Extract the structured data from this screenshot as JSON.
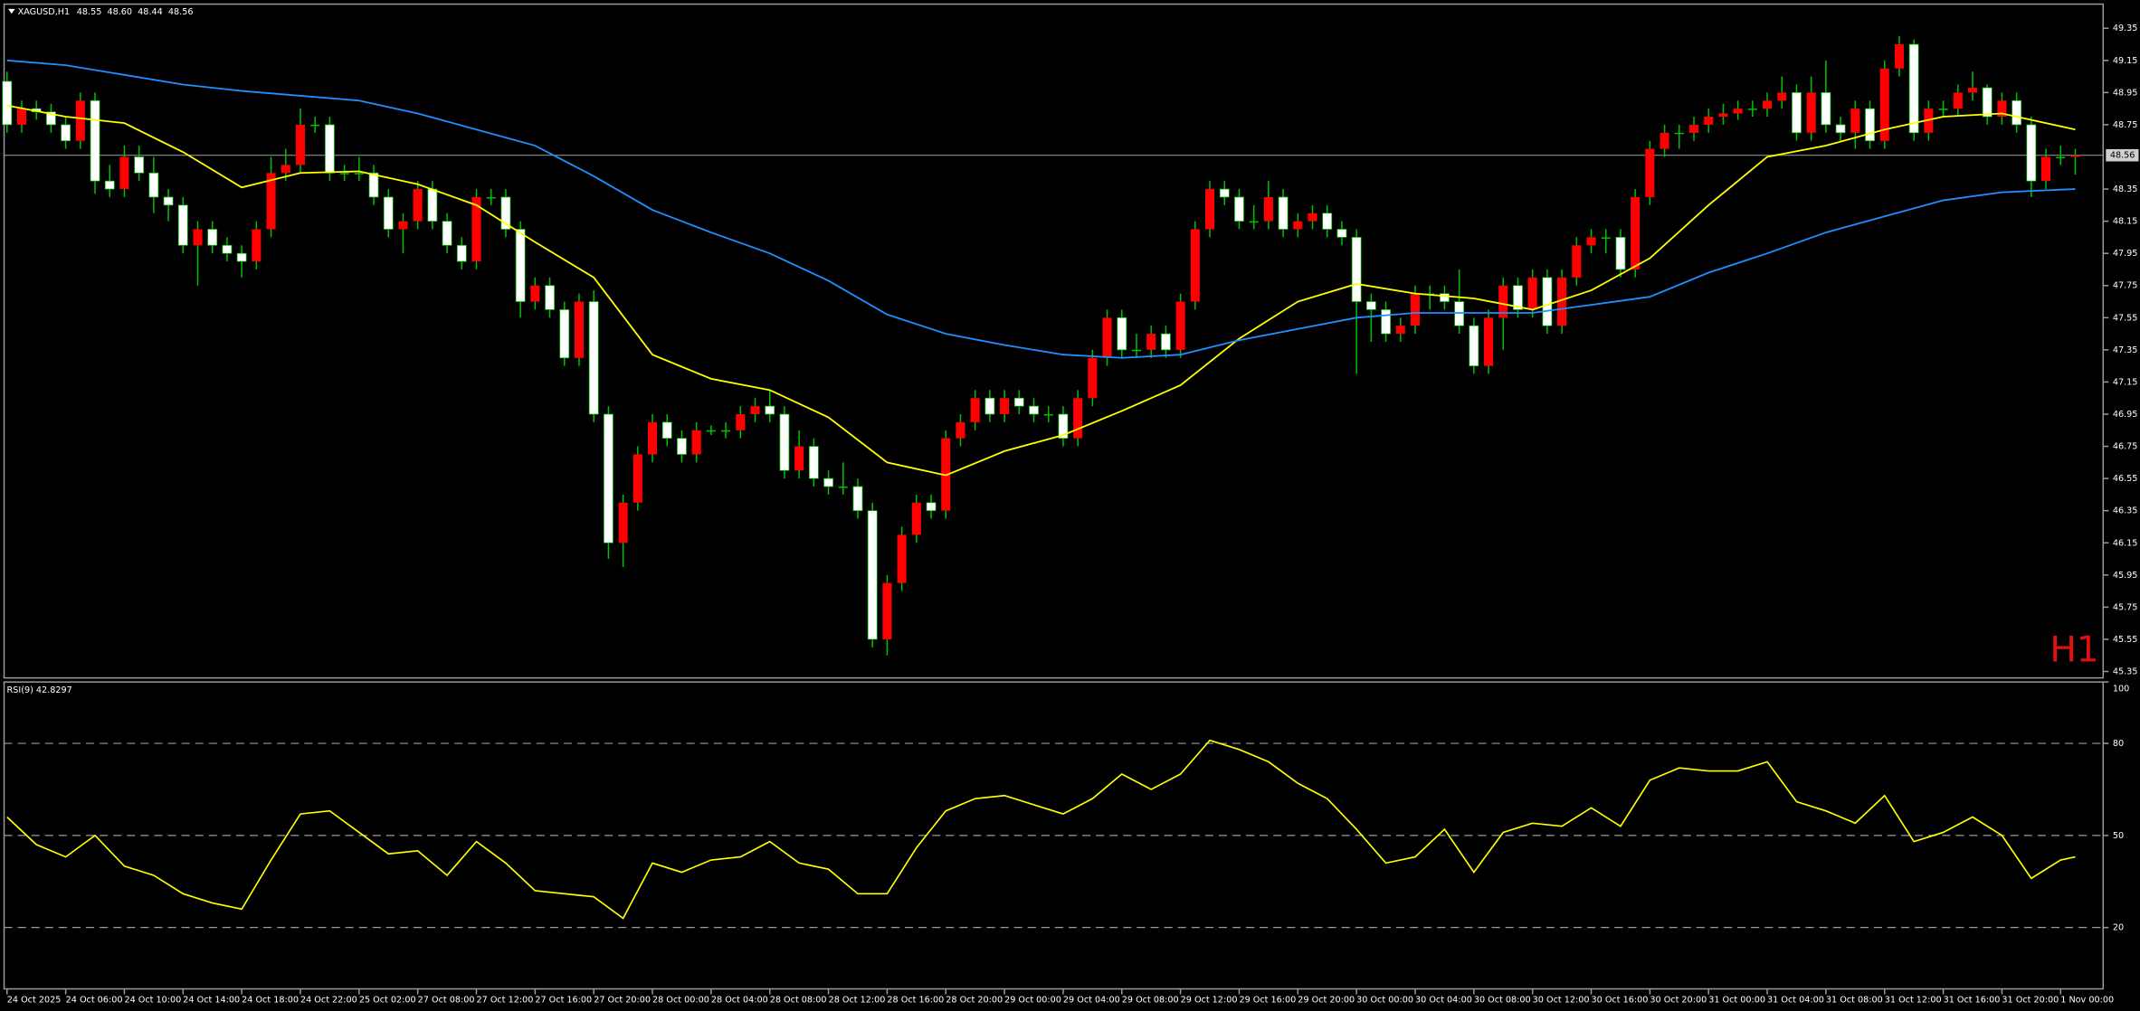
{
  "chart_data": {
    "type": "candlestick",
    "title": "XAGUSD,H1",
    "quote": [
      "48.55",
      "48.60",
      "48.44",
      "48.56"
    ],
    "timeframe_label": "H1",
    "up_color": "#ff0000",
    "down_color": "#ffffff",
    "wick_color": "#00c000",
    "ohlc": [
      [
        49.02,
        49.08,
        48.7,
        48.75
      ],
      [
        48.75,
        48.9,
        48.7,
        48.85
      ],
      [
        48.85,
        48.9,
        48.78,
        48.83
      ],
      [
        48.83,
        48.88,
        48.7,
        48.75
      ],
      [
        48.75,
        48.8,
        48.6,
        48.65
      ],
      [
        48.65,
        48.95,
        48.6,
        48.9
      ],
      [
        48.9,
        48.95,
        48.32,
        48.4
      ],
      [
        48.4,
        48.5,
        48.3,
        48.35
      ],
      [
        48.35,
        48.62,
        48.3,
        48.55
      ],
      [
        48.55,
        48.62,
        48.4,
        48.45
      ],
      [
        48.45,
        48.55,
        48.2,
        48.3
      ],
      [
        48.3,
        48.35,
        48.15,
        48.25
      ],
      [
        48.25,
        48.3,
        47.95,
        48.0
      ],
      [
        48.0,
        48.15,
        47.75,
        48.1
      ],
      [
        48.1,
        48.15,
        47.95,
        48.0
      ],
      [
        48.0,
        48.05,
        47.9,
        47.95
      ],
      [
        47.95,
        48.0,
        47.8,
        47.9
      ],
      [
        47.9,
        48.15,
        47.85,
        48.1
      ],
      [
        48.1,
        48.55,
        48.05,
        48.45
      ],
      [
        48.45,
        48.6,
        48.4,
        48.5
      ],
      [
        48.5,
        48.85,
        48.45,
        48.75
      ],
      [
        48.75,
        48.8,
        48.7,
        48.75
      ],
      [
        48.75,
        48.8,
        48.4,
        48.45
      ],
      [
        48.45,
        48.5,
        48.4,
        48.45
      ],
      [
        48.45,
        48.55,
        48.4,
        48.45
      ],
      [
        48.45,
        48.5,
        48.25,
        48.3
      ],
      [
        48.3,
        48.35,
        48.05,
        48.1
      ],
      [
        48.1,
        48.2,
        47.95,
        48.15
      ],
      [
        48.15,
        48.4,
        48.1,
        48.35
      ],
      [
        48.35,
        48.4,
        48.1,
        48.15
      ],
      [
        48.15,
        48.2,
        47.95,
        48.0
      ],
      [
        48.0,
        48.05,
        47.85,
        47.9
      ],
      [
        47.9,
        48.35,
        47.85,
        48.3
      ],
      [
        48.3,
        48.35,
        48.25,
        48.3
      ],
      [
        48.3,
        48.35,
        48.05,
        48.1
      ],
      [
        48.1,
        48.15,
        47.55,
        47.65
      ],
      [
        47.65,
        47.8,
        47.6,
        47.75
      ],
      [
        47.75,
        47.8,
        47.55,
        47.6
      ],
      [
        47.6,
        47.65,
        47.25,
        47.3
      ],
      [
        47.3,
        47.7,
        47.25,
        47.65
      ],
      [
        47.65,
        47.72,
        46.9,
        46.95
      ],
      [
        46.95,
        47.0,
        46.05,
        46.15
      ],
      [
        46.15,
        46.45,
        46.0,
        46.4
      ],
      [
        46.4,
        46.75,
        46.35,
        46.7
      ],
      [
        46.7,
        46.95,
        46.65,
        46.9
      ],
      [
        46.9,
        46.95,
        46.75,
        46.8
      ],
      [
        46.8,
        46.85,
        46.65,
        46.7
      ],
      [
        46.7,
        46.9,
        46.65,
        46.85
      ],
      [
        46.85,
        46.88,
        46.82,
        46.85
      ],
      [
        46.85,
        46.9,
        46.8,
        46.85
      ],
      [
        46.85,
        47.0,
        46.8,
        46.95
      ],
      [
        46.95,
        47.05,
        46.9,
        47.0
      ],
      [
        47.0,
        47.1,
        46.9,
        46.95
      ],
      [
        46.95,
        47.0,
        46.55,
        46.6
      ],
      [
        46.6,
        46.85,
        46.55,
        46.75
      ],
      [
        46.75,
        46.8,
        46.5,
        46.55
      ],
      [
        46.55,
        46.6,
        46.45,
        46.5
      ],
      [
        46.5,
        46.65,
        46.45,
        46.5
      ],
      [
        46.5,
        46.55,
        46.3,
        46.35
      ],
      [
        46.35,
        46.4,
        45.5,
        45.55
      ],
      [
        45.55,
        45.95,
        45.45,
        45.9
      ],
      [
        45.9,
        46.25,
        45.85,
        46.2
      ],
      [
        46.2,
        46.45,
        46.15,
        46.4
      ],
      [
        46.4,
        46.45,
        46.3,
        46.35
      ],
      [
        46.35,
        46.85,
        46.3,
        46.8
      ],
      [
        46.8,
        46.95,
        46.75,
        46.9
      ],
      [
        46.9,
        47.1,
        46.85,
        47.05
      ],
      [
        47.05,
        47.1,
        46.9,
        46.95
      ],
      [
        46.95,
        47.1,
        46.9,
        47.05
      ],
      [
        47.05,
        47.1,
        46.95,
        47.0
      ],
      [
        47.0,
        47.05,
        46.9,
        46.95
      ],
      [
        46.95,
        47.0,
        46.9,
        46.95
      ],
      [
        46.95,
        47.0,
        46.75,
        46.8
      ],
      [
        46.8,
        47.1,
        46.75,
        47.05
      ],
      [
        47.05,
        47.35,
        47.0,
        47.3
      ],
      [
        47.3,
        47.6,
        47.25,
        47.55
      ],
      [
        47.55,
        47.6,
        47.3,
        47.35
      ],
      [
        47.35,
        47.45,
        47.3,
        47.35
      ],
      [
        47.35,
        47.5,
        47.3,
        47.45
      ],
      [
        47.45,
        47.5,
        47.3,
        47.35
      ],
      [
        47.35,
        47.7,
        47.3,
        47.65
      ],
      [
        47.65,
        48.15,
        47.6,
        48.1
      ],
      [
        48.1,
        48.4,
        48.05,
        48.35
      ],
      [
        48.35,
        48.4,
        48.25,
        48.3
      ],
      [
        48.3,
        48.35,
        48.1,
        48.15
      ],
      [
        48.15,
        48.25,
        48.1,
        48.15
      ],
      [
        48.15,
        48.4,
        48.1,
        48.3
      ],
      [
        48.3,
        48.35,
        48.05,
        48.1
      ],
      [
        48.1,
        48.2,
        48.05,
        48.15
      ],
      [
        48.15,
        48.25,
        48.1,
        48.2
      ],
      [
        48.2,
        48.25,
        48.05,
        48.1
      ],
      [
        48.1,
        48.15,
        48.0,
        48.05
      ],
      [
        48.05,
        48.1,
        47.2,
        47.65
      ],
      [
        47.65,
        47.7,
        47.4,
        47.6
      ],
      [
        47.6,
        47.65,
        47.4,
        47.45
      ],
      [
        47.45,
        47.55,
        47.4,
        47.5
      ],
      [
        47.5,
        47.75,
        47.45,
        47.7
      ],
      [
        47.7,
        47.75,
        47.6,
        47.7
      ],
      [
        47.7,
        47.75,
        47.6,
        47.65
      ],
      [
        47.65,
        47.85,
        47.45,
        47.5
      ],
      [
        47.5,
        47.55,
        47.2,
        47.25
      ],
      [
        47.25,
        47.6,
        47.2,
        47.55
      ],
      [
        47.55,
        47.8,
        47.35,
        47.75
      ],
      [
        47.75,
        47.8,
        47.55,
        47.6
      ],
      [
        47.6,
        47.85,
        47.55,
        47.8
      ],
      [
        47.8,
        47.85,
        47.45,
        47.5
      ],
      [
        47.5,
        47.85,
        47.45,
        47.8
      ],
      [
        47.8,
        48.05,
        47.75,
        48.0
      ],
      [
        48.0,
        48.1,
        47.95,
        48.05
      ],
      [
        48.05,
        48.1,
        47.95,
        48.05
      ],
      [
        48.05,
        48.1,
        47.8,
        47.85
      ],
      [
        47.85,
        48.35,
        47.8,
        48.3
      ],
      [
        48.3,
        48.65,
        48.25,
        48.6
      ],
      [
        48.6,
        48.75,
        48.55,
        48.7
      ],
      [
        48.7,
        48.75,
        48.6,
        48.7
      ],
      [
        48.7,
        48.8,
        48.65,
        48.75
      ],
      [
        48.75,
        48.85,
        48.7,
        48.8
      ],
      [
        48.8,
        48.88,
        48.75,
        48.82
      ],
      [
        48.82,
        48.9,
        48.78,
        48.85
      ],
      [
        48.85,
        48.9,
        48.8,
        48.85
      ],
      [
        48.85,
        48.95,
        48.8,
        48.9
      ],
      [
        48.9,
        49.05,
        48.85,
        48.95
      ],
      [
        48.95,
        49.0,
        48.65,
        48.7
      ],
      [
        48.7,
        49.05,
        48.65,
        48.95
      ],
      [
        48.95,
        49.15,
        48.7,
        48.75
      ],
      [
        48.75,
        48.8,
        48.65,
        48.7
      ],
      [
        48.7,
        48.9,
        48.6,
        48.85
      ],
      [
        48.85,
        48.9,
        48.6,
        48.65
      ],
      [
        48.65,
        49.15,
        48.6,
        49.1
      ],
      [
        49.1,
        49.3,
        49.05,
        49.25
      ],
      [
        49.25,
        49.28,
        48.65,
        48.7
      ],
      [
        48.7,
        48.9,
        48.65,
        48.85
      ],
      [
        48.85,
        48.9,
        48.8,
        48.85
      ],
      [
        48.85,
        49.0,
        48.8,
        48.95
      ],
      [
        48.95,
        49.08,
        48.9,
        48.98
      ],
      [
        48.98,
        49.0,
        48.75,
        48.8
      ],
      [
        48.8,
        48.95,
        48.75,
        48.9
      ],
      [
        48.9,
        48.95,
        48.7,
        48.75
      ],
      [
        48.75,
        48.8,
        48.3,
        48.4
      ],
      [
        48.4,
        48.6,
        48.35,
        48.55
      ],
      [
        48.55,
        48.62,
        48.5,
        48.55
      ],
      [
        48.55,
        48.6,
        48.44,
        48.56
      ]
    ],
    "ma": [
      {
        "color": "#ffff00",
        "x": [
          0,
          4,
          8,
          12,
          16,
          20,
          24,
          28,
          32,
          36,
          40,
          44,
          48,
          52,
          56,
          60,
          64,
          68,
          72,
          76,
          80,
          84,
          88,
          92,
          96,
          100,
          104,
          108,
          112,
          116,
          120,
          124,
          128,
          132,
          136,
          141
        ],
        "values": [
          48.87,
          48.8,
          48.76,
          48.58,
          48.36,
          48.45,
          48.46,
          48.38,
          48.25,
          48.02,
          47.8,
          47.32,
          47.17,
          47.1,
          46.93,
          46.65,
          46.57,
          46.72,
          46.82,
          46.97,
          47.13,
          47.42,
          47.65,
          47.76,
          47.7,
          47.67,
          47.6,
          47.72,
          47.92,
          48.25,
          48.55,
          48.62,
          48.72,
          48.8,
          48.82,
          48.72
        ]
      },
      {
        "color": "#1e90ff",
        "x": [
          0,
          4,
          8,
          12,
          16,
          20,
          24,
          28,
          32,
          36,
          40,
          44,
          48,
          52,
          56,
          60,
          64,
          68,
          72,
          76,
          80,
          84,
          88,
          92,
          96,
          100,
          104,
          108,
          112,
          116,
          120,
          124,
          128,
          132,
          136,
          141
        ],
        "values": [
          49.15,
          49.12,
          49.06,
          49.0,
          48.96,
          48.93,
          48.9,
          48.82,
          48.72,
          48.62,
          48.43,
          48.22,
          48.08,
          47.95,
          47.78,
          47.57,
          47.45,
          47.38,
          47.32,
          47.3,
          47.32,
          47.41,
          47.48,
          47.55,
          47.58,
          47.58,
          47.58,
          47.63,
          47.68,
          47.83,
          47.95,
          48.08,
          48.18,
          48.28,
          48.33,
          48.35
        ]
      }
    ],
    "last_price": 48.56,
    "xlim": [
      -0.2,
      142.9
    ],
    "ylim": [
      45.31,
      49.5
    ],
    "yticks": [
      49.35,
      49.15,
      48.95,
      48.75,
      48.35,
      48.15,
      47.95,
      47.75,
      47.55,
      47.35,
      47.15,
      46.95,
      46.75,
      46.55,
      46.35,
      46.15,
      45.95,
      45.75,
      45.55,
      45.35
    ],
    "xticks": [
      {
        "value": 0,
        "label": "24 Oct 2025"
      },
      {
        "value": 4,
        "label": "24 Oct 06:00"
      },
      {
        "value": 8,
        "label": "24 Oct 10:00"
      },
      {
        "value": 12,
        "label": "24 Oct 14:00"
      },
      {
        "value": 16,
        "label": "24 Oct 18:00"
      },
      {
        "value": 20,
        "label": "24 Oct 22:00"
      },
      {
        "value": 24,
        "label": "25 Oct 02:00"
      },
      {
        "value": 28,
        "label": "27 Oct 08:00"
      },
      {
        "value": 32,
        "label": "27 Oct 12:00"
      },
      {
        "value": 36,
        "label": "27 Oct 16:00"
      },
      {
        "value": 40,
        "label": "27 Oct 20:00"
      },
      {
        "value": 44,
        "label": "28 Oct 00:00"
      },
      {
        "value": 48,
        "label": "28 Oct 04:00"
      },
      {
        "value": 52,
        "label": "28 Oct 08:00"
      },
      {
        "value": 56,
        "label": "28 Oct 12:00"
      },
      {
        "value": 60,
        "label": "28 Oct 16:00"
      },
      {
        "value": 64,
        "label": "28 Oct 20:00"
      },
      {
        "value": 68,
        "label": "29 Oct 00:00"
      },
      {
        "value": 72,
        "label": "29 Oct 04:00"
      },
      {
        "value": 76,
        "label": "29 Oct 08:00"
      },
      {
        "value": 80,
        "label": "29 Oct 12:00"
      },
      {
        "value": 84,
        "label": "29 Oct 16:00"
      },
      {
        "value": 88,
        "label": "29 Oct 20:00"
      },
      {
        "value": 92,
        "label": "30 Oct 00:00"
      },
      {
        "value": 96,
        "label": "30 Oct 04:00"
      },
      {
        "value": 100,
        "label": "30 Oct 08:00"
      },
      {
        "value": 104,
        "label": "30 Oct 12:00"
      },
      {
        "value": 108,
        "label": "30 Oct 16:00"
      },
      {
        "value": 112,
        "label": "30 Oct 20:00"
      },
      {
        "value": 116,
        "label": "31 Oct 00:00"
      },
      {
        "value": 120,
        "label": "31 Oct 04:00"
      },
      {
        "value": 124,
        "label": "31 Oct 08:00"
      },
      {
        "value": 128,
        "label": "31 Oct 12:00"
      },
      {
        "value": 132,
        "label": "31 Oct 16:00"
      },
      {
        "value": 136,
        "label": "31 Oct 20:00"
      },
      {
        "value": 140,
        "label": "1 Nov 00:00"
      }
    ],
    "rsi": {
      "title": "RSI(9) 42.8297",
      "color": "#ffff00",
      "ylim": [
        0,
        100
      ],
      "yticks": [
        100,
        80,
        50,
        20
      ],
      "levels": [
        80,
        50,
        20
      ],
      "x": [
        0,
        2,
        4,
        6,
        8,
        10,
        12,
        14,
        16,
        18,
        20,
        22,
        24,
        26,
        28,
        30,
        32,
        34,
        36,
        38,
        40,
        42,
        44,
        46,
        48,
        50,
        52,
        54,
        56,
        58,
        60,
        62,
        64,
        66,
        68,
        70,
        72,
        74,
        76,
        78,
        80,
        82,
        84,
        86,
        88,
        90,
        92,
        94,
        96,
        98,
        100,
        102,
        104,
        106,
        108,
        110,
        112,
        114,
        116,
        118,
        120,
        122,
        124,
        126,
        128,
        130,
        132,
        134,
        136,
        138,
        140,
        141
      ],
      "values": [
        56,
        47,
        43,
        50,
        40,
        37,
        31,
        28,
        26,
        42,
        57,
        58,
        51,
        44,
        45,
        37,
        48,
        41,
        32,
        31,
        30,
        23,
        41,
        38,
        42,
        43,
        48,
        41,
        39,
        31,
        31,
        46,
        58,
        62,
        63,
        60,
        57,
        62,
        70,
        65,
        70,
        81,
        78,
        74,
        67,
        62,
        52,
        41,
        43,
        52,
        38,
        51,
        54,
        53,
        59,
        53,
        68,
        72,
        71,
        71,
        74,
        61,
        58,
        54,
        63,
        48,
        51,
        56,
        50,
        36,
        42,
        43
      ]
    }
  }
}
